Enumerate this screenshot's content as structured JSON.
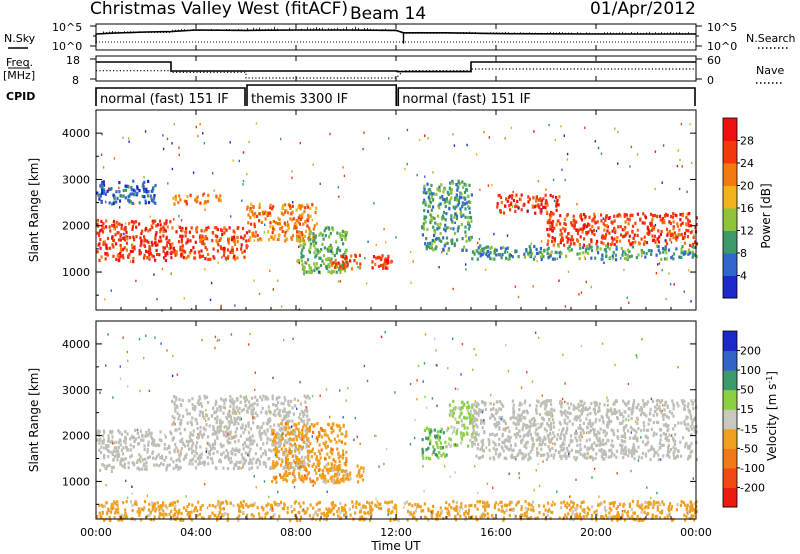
{
  "header": {
    "title": "Christmas Valley West (fitACF)",
    "beam": "Beam 14",
    "date": "01/Apr/2012"
  },
  "panels": {
    "nsky_label": "N.Sky",
    "nsearch_label": "N.Search",
    "nsky_ticks": [
      "10^5",
      "10^0"
    ],
    "nsearch_ticks": [
      "10^5",
      "10^0"
    ],
    "freq_label_line1": "Freq.",
    "freq_label_line2": "[MHz]",
    "freq_ticks": [
      "18",
      "8"
    ],
    "nave_label": "Nave",
    "nave_ticks": [
      "60",
      "0"
    ],
    "cpid_label": "CPID",
    "cpid_modes": [
      {
        "label": "normal (fast) 151 IF",
        "start": 0,
        "end": 6
      },
      {
        "label": "themis 3300 IF",
        "start": 6,
        "end": 12.05
      },
      {
        "label": "normal (fast) 151 IF",
        "start": 12.05,
        "end": 24
      }
    ]
  },
  "x_axis": {
    "label": "Time UT",
    "ticks": [
      "00:00",
      "04:00",
      "08:00",
      "12:00",
      "16:00",
      "20:00",
      "00:00"
    ]
  },
  "power_panel": {
    "ylabel": "Slant Range [km]",
    "yticks": [
      "1000",
      "2000",
      "3000",
      "4000"
    ],
    "colorbar_label": "Power [dB]",
    "colorbar_ticks": [
      "4",
      "8",
      "12",
      "16",
      "20",
      "24",
      "28"
    ]
  },
  "velocity_panel": {
    "ylabel": "Slant Range [km]",
    "yticks": [
      "1000",
      "2000",
      "3000",
      "4000"
    ],
    "colorbar_label": "Velocity [m s^-1]",
    "colorbar_ticks": [
      "-200",
      "-100",
      "-50",
      "-15",
      "15",
      "50",
      "100",
      "200"
    ]
  },
  "colors": {
    "power_scale": [
      "#1c28c8",
      "#3366cc",
      "#3c9a6a",
      "#8fc33a",
      "#f2b21c",
      "#f27a10",
      "#f43a0c",
      "#ee1010"
    ],
    "velocity_scale": [
      "#e81c10",
      "#f04a10",
      "#f07a18",
      "#f0a020",
      "#c8c8c0",
      "#8cd040",
      "#3c9a6a",
      "#3464c8",
      "#1c28c8"
    ],
    "ground_scatter": "#bebeb6"
  },
  "chart_data": [
    {
      "type": "line",
      "title": "Christmas Valley West (fitACF)",
      "panel": "N.Sky / N.Search",
      "x_unit": "hours UT",
      "x": [
        0,
        0.6,
        2,
        3,
        4,
        6,
        8,
        10,
        12,
        12.3,
        14,
        16,
        20,
        24
      ],
      "series": [
        {
          "name": "N.Sky",
          "values": [
            3.0,
            3.2,
            3.5,
            3.6,
            4.0,
            3.9,
            4.0,
            4.0,
            3.9,
            3.3,
            3.3,
            3.1,
            3.0,
            3.0
          ]
        },
        {
          "name": "N.Search",
          "values": [
            1.0,
            1.0,
            1.0,
            1.0,
            1.0,
            1.0,
            1.0,
            1.0,
            1.0,
            1.0,
            1.0,
            1.0,
            1.0,
            1.0
          ]
        }
      ],
      "ylim": [
        0,
        5
      ]
    },
    {
      "type": "line",
      "panel": "Freq. [MHz] / Nave",
      "x_unit": "hours UT",
      "series": [
        {
          "name": "Freq.",
          "x": [
            0,
            3,
            3,
            12.05,
            12.05,
            15,
            15,
            24
          ],
          "values": [
            16.5,
            16.5,
            12.0,
            12.0,
            11.7,
            11.7,
            16.5,
            16.5
          ]
        },
        {
          "name": "Nave",
          "x": [
            0,
            3,
            3,
            6,
            6,
            12,
            12.3,
            15,
            15,
            24
          ],
          "values": [
            25,
            25,
            20,
            20,
            3,
            3,
            25,
            25,
            30,
            30
          ]
        }
      ],
      "ylim": [
        8,
        18
      ]
    },
    {
      "type": "heatmap",
      "panel": "Power",
      "ylabel": "Slant Range [km]",
      "xlabel": "Time UT",
      "ylim": [
        180,
        4500
      ],
      "xlim": [
        0,
        24
      ],
      "colorbar": {
        "label": "Power [dB]",
        "range": [
          0,
          32
        ],
        "ticks": [
          4,
          8,
          12,
          16,
          20,
          24,
          28
        ]
      },
      "features": [
        {
          "t": [
            0,
            3
          ],
          "range_km": [
            1250,
            2150
          ],
          "power_db": 27
        },
        {
          "t": [
            0,
            2.4
          ],
          "range_km": [
            2500,
            3000
          ],
          "power_db": 6
        },
        {
          "t": [
            3,
            6
          ],
          "range_km": [
            1300,
            2000
          ],
          "power_db": 26
        },
        {
          "t": [
            3,
            5
          ],
          "range_km": [
            2500,
            2700
          ],
          "power_db": 22
        },
        {
          "t": [
            6,
            8.8
          ],
          "range_km": [
            1700,
            2500
          ],
          "power_db": 22
        },
        {
          "t": [
            8,
            10
          ],
          "range_km": [
            1000,
            2000
          ],
          "power_db": 12
        },
        {
          "t": [
            9.3,
            10.7
          ],
          "range_km": [
            1100,
            1400
          ],
          "power_db": 25
        },
        {
          "t": [
            11,
            11.8
          ],
          "range_km": [
            1100,
            1400
          ],
          "power_db": 27
        },
        {
          "t": [
            13,
            15
          ],
          "range_km": [
            1500,
            3000
          ],
          "power_db": 10
        },
        {
          "t": [
            16,
            18.5
          ],
          "range_km": [
            2300,
            2700
          ],
          "power_db": 27
        },
        {
          "t": [
            18,
            24
          ],
          "range_km": [
            1600,
            2300
          ],
          "power_db": 26
        },
        {
          "t": [
            15,
            24
          ],
          "range_km": [
            1300,
            1600
          ],
          "power_db": 10
        }
      ]
    },
    {
      "type": "heatmap",
      "panel": "Velocity",
      "ylabel": "Slant Range [km]",
      "xlabel": "Time UT",
      "ylim": [
        180,
        4500
      ],
      "xlim": [
        0,
        24
      ],
      "colorbar": {
        "label": "Velocity [m s^-1]",
        "range": [
          -250,
          250
        ],
        "ticks": [
          -200,
          -100,
          -50,
          -15,
          15,
          50,
          100,
          200
        ]
      },
      "features": [
        {
          "t": [
            0,
            3
          ],
          "range_km": [
            1250,
            2150
          ],
          "velocity": 0,
          "ground_scatter": true
        },
        {
          "t": [
            3,
            8.5
          ],
          "range_km": [
            1300,
            2900
          ],
          "velocity": 0,
          "ground_scatter": true
        },
        {
          "t": [
            7,
            10
          ],
          "range_km": [
            1000,
            2300
          ],
          "velocity": -60
        },
        {
          "t": [
            9,
            10.7
          ],
          "range_km": [
            1000,
            1400
          ],
          "velocity": -50
        },
        {
          "t": [
            13,
            14
          ],
          "range_km": [
            1500,
            2200
          ],
          "velocity": 80
        },
        {
          "t": [
            14,
            15.2
          ],
          "range_km": [
            1800,
            2800
          ],
          "velocity": 40
        },
        {
          "t": [
            15,
            24
          ],
          "range_km": [
            1500,
            2800
          ],
          "velocity": 0,
          "ground_scatter": true
        },
        {
          "t": [
            0,
            24
          ],
          "range_km": [
            180,
            600
          ],
          "velocity": -50
        }
      ]
    }
  ]
}
